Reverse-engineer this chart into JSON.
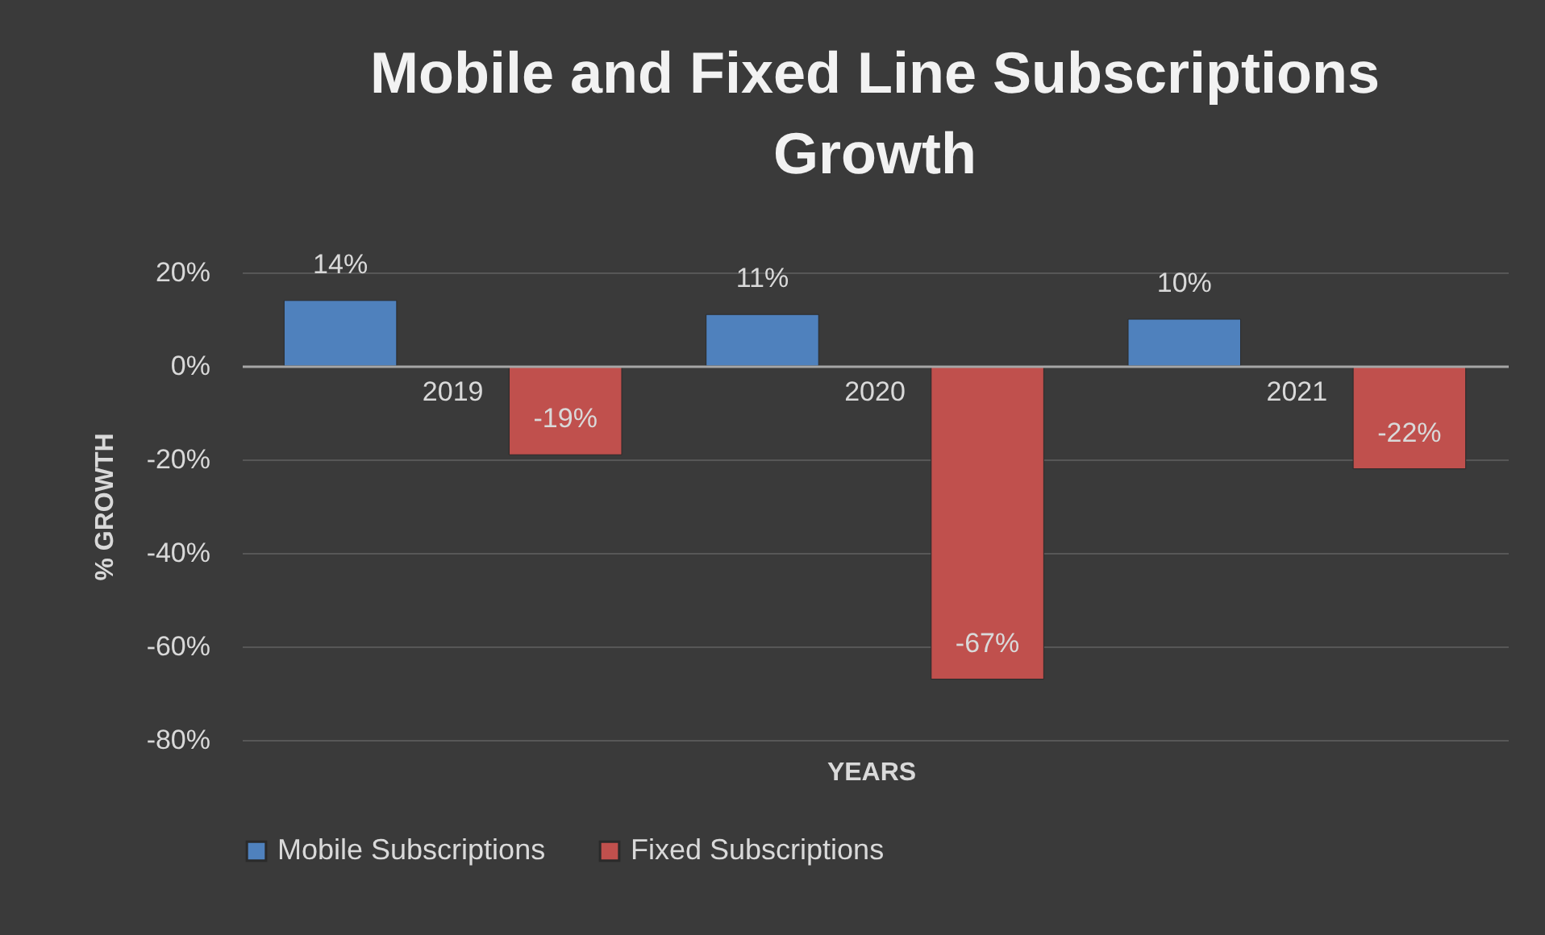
{
  "chart_data": {
    "type": "bar",
    "title": "Mobile and Fixed Line Subscriptions Growth",
    "xlabel": "YEARS",
    "ylabel": "% GROWTH",
    "categories": [
      "2019",
      "2020",
      "2021"
    ],
    "series": [
      {
        "name": "Mobile Subscriptions",
        "color": "#4f81bd",
        "values": [
          14,
          11,
          10
        ],
        "value_labels": [
          "14%",
          "11%",
          "10%"
        ]
      },
      {
        "name": "Fixed Subscriptions",
        "color": "#c0504d",
        "values": [
          -19,
          -67,
          -22
        ],
        "value_labels": [
          "-19%",
          "-67%",
          "-22%"
        ]
      }
    ],
    "ylim": [
      -80,
      20
    ],
    "yticks": [
      {
        "value": -80,
        "label": "-80%"
      },
      {
        "value": -60,
        "label": "-60%"
      },
      {
        "value": -40,
        "label": "-40%"
      },
      {
        "value": -20,
        "label": "-20%"
      },
      {
        "value": 0,
        "label": "0%"
      },
      {
        "value": 20,
        "label": "20%"
      }
    ],
    "grid": "y",
    "legend": "bottom"
  }
}
